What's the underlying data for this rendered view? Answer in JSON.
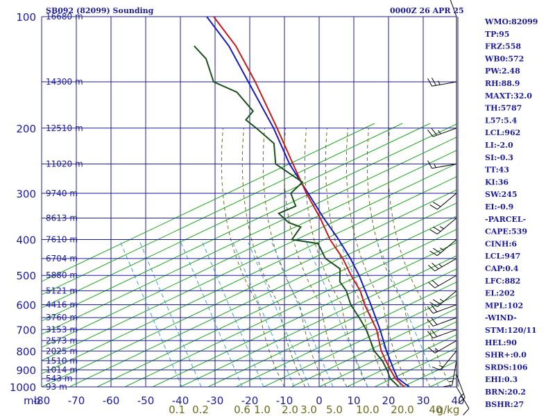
{
  "header": {
    "station": "SB092 (82099) Sounding",
    "time": "0000Z 26 APR 25"
  },
  "indices": [
    "WMO:82099",
    "TP:95",
    "FRZ:558",
    "WB0:572",
    "PW:2.48",
    "RH:88.9",
    "MAXT:32.0",
    "TH:5787",
    "L57:5.4",
    "LCL:962",
    "LI:-2.0",
    "SI:-0.3",
    "TT:43",
    "KI:36",
    "SW:245",
    "EI:-0.9",
    "-PARCEL-",
    "CAPE:539",
    "CINH:6",
    "LCL:947",
    "CAP:0.4",
    "LFC:882",
    "EL:202",
    "MPL:102",
    "-WIND-",
    "STM:120/11",
    "HEL:90",
    "SHR+:0.0",
    "SRDS:106",
    "EHI:0.3",
    "BRN:20.2",
    "BSHR:27"
  ],
  "colors": {
    "grid": "#1a1a9c",
    "dry_adiabat": "#1aa51a",
    "moist_adiabat": "#6b6b20",
    "mixing_ratio": "#3aa0d8",
    "temperature": "#c81818",
    "dewpoint": "#185018",
    "parcel": "#1818c0",
    "mixing_label": "#6b6b20"
  },
  "chart_data": {
    "type": "line",
    "diagram": "skew-t",
    "title": "SB092 (82099) Sounding",
    "ylabel": "mb",
    "pressure_ticks": [
      100,
      200,
      300,
      400,
      500,
      600,
      700,
      800,
      900,
      1000
    ],
    "temperature_ticks": [
      -80,
      -70,
      -60,
      -50,
      -40,
      -30,
      -20,
      -10,
      0,
      10,
      20,
      30,
      40
    ],
    "temperature_tick_labels": [
      "-80",
      "-70",
      "-60",
      "-50",
      "-40",
      "-30",
      "-20",
      "-10",
      "0",
      "10",
      "20",
      "30",
      "40"
    ],
    "xlim": [
      -80,
      40
    ],
    "ylim": [
      100,
      1000
    ],
    "heights": [
      {
        "label": "16680 m",
        "p": 100
      },
      {
        "label": "14300 m",
        "p": 150
      },
      {
        "label": "12510 m",
        "p": 200
      },
      {
        "label": "11020 m",
        "p": 250
      },
      {
        "label": "9740 m",
        "p": 300
      },
      {
        "label": "8613 m",
        "p": 350
      },
      {
        "label": "7610 m",
        "p": 400
      },
      {
        "label": "6704 m",
        "p": 450
      },
      {
        "label": "5880 m",
        "p": 500
      },
      {
        "label": "5121 m",
        "p": 550
      },
      {
        "label": "4416 m",
        "p": 600
      },
      {
        "label": "3760 m",
        "p": 650
      },
      {
        "label": "3153 m",
        "p": 700
      },
      {
        "label": "2573 m",
        "p": 750
      },
      {
        "label": "2025 m",
        "p": 800
      },
      {
        "label": "1510 m",
        "p": 850
      },
      {
        "label": "1014 m",
        "p": 900
      },
      {
        "label": "543 m",
        "p": 950
      },
      {
        "label": "93 m",
        "p": 1000
      }
    ],
    "mixing_ratio_labels": [
      "0.1",
      "0.2",
      "0.6",
      "1.0",
      "2.0",
      "3.0",
      "5.0",
      "10.0",
      "20.0",
      "40",
      "g/kg"
    ],
    "mixing_ratio_values": [
      0.1,
      0.2,
      0.6,
      1.0,
      2.0,
      3.0,
      5.0,
      10.0,
      20.0,
      40
    ],
    "series": [
      {
        "key": "temperature",
        "points": [
          [
            1005,
            24.0
          ],
          [
            1000,
            24.5
          ],
          [
            950,
            21.0
          ],
          [
            900,
            18.5
          ],
          [
            850,
            16.0
          ],
          [
            800,
            13.5
          ],
          [
            700,
            9.5
          ],
          [
            600,
            3.0
          ],
          [
            550,
            0.0
          ],
          [
            500,
            -4.5
          ],
          [
            450,
            -9.0
          ],
          [
            400,
            -15.0
          ],
          [
            350,
            -20.5
          ],
          [
            300,
            -27.5
          ],
          [
            250,
            -35.0
          ],
          [
            200,
            -44.0
          ],
          [
            150,
            -56.0
          ],
          [
            120,
            -66.0
          ],
          [
            100,
            -76.0
          ]
        ]
      },
      {
        "key": "dewpoint",
        "points": [
          [
            1005,
            21.5
          ],
          [
            1000,
            23.0
          ],
          [
            950,
            19.5
          ],
          [
            900,
            17.5
          ],
          [
            850,
            15.0
          ],
          [
            800,
            11.5
          ],
          [
            700,
            6.5
          ],
          [
            650,
            3.0
          ],
          [
            600,
            -1.0
          ],
          [
            550,
            -4.0
          ],
          [
            520,
            -7.0
          ],
          [
            480,
            -8.5
          ],
          [
            450,
            -14.0
          ],
          [
            410,
            -18.0
          ],
          [
            400,
            -26.0
          ],
          [
            370,
            -25.0
          ],
          [
            360,
            -29.0
          ],
          [
            340,
            -33.0
          ],
          [
            325,
            -29.0
          ],
          [
            300,
            -32.0
          ],
          [
            280,
            -30.0
          ],
          [
            250,
            -40.0
          ],
          [
            220,
            -43.0
          ],
          [
            200,
            -50.0
          ],
          [
            190,
            -54.0
          ],
          [
            180,
            -53.0
          ],
          [
            160,
            -60.0
          ],
          [
            150,
            -68.0
          ],
          [
            130,
            -73.0
          ],
          [
            120,
            -78.0
          ]
        ]
      },
      {
        "key": "parcel",
        "points": [
          [
            1000,
            26.0
          ],
          [
            947,
            21.5
          ],
          [
            900,
            19.5
          ],
          [
            800,
            15.0
          ],
          [
            700,
            10.5
          ],
          [
            600,
            4.8
          ],
          [
            500,
            -2.2
          ],
          [
            450,
            -6.8
          ],
          [
            400,
            -12.5
          ],
          [
            350,
            -19.5
          ],
          [
            300,
            -27.0
          ],
          [
            250,
            -36.0
          ],
          [
            200,
            -45.0
          ],
          [
            150,
            -58.0
          ],
          [
            120,
            -68.0
          ],
          [
            100,
            -78.0
          ]
        ]
      }
    ],
    "wind_barbs": [
      {
        "p": 1000,
        "dir": 150,
        "spd": 10
      },
      {
        "p": 925,
        "dir": 160,
        "spd": 15
      },
      {
        "p": 850,
        "dir": 190,
        "spd": 15
      },
      {
        "p": 800,
        "dir": 220,
        "spd": 15
      },
      {
        "p": 750,
        "dir": 240,
        "spd": 15
      },
      {
        "p": 700,
        "dir": 250,
        "spd": 20
      },
      {
        "p": 650,
        "dir": 250,
        "spd": 20
      },
      {
        "p": 600,
        "dir": 250,
        "spd": 20
      },
      {
        "p": 550,
        "dir": 230,
        "spd": 25
      },
      {
        "p": 500,
        "dir": 240,
        "spd": 20
      },
      {
        "p": 450,
        "dir": 240,
        "spd": 25
      },
      {
        "p": 400,
        "dir": 230,
        "spd": 25
      },
      {
        "p": 350,
        "dir": 230,
        "spd": 25
      },
      {
        "p": 300,
        "dir": 230,
        "spd": 20
      },
      {
        "p": 250,
        "dir": 260,
        "spd": 15
      },
      {
        "p": 200,
        "dir": 250,
        "spd": 25
      },
      {
        "p": 150,
        "dir": 260,
        "spd": 25
      },
      {
        "p": 100,
        "dir": 340,
        "spd": 10
      }
    ]
  }
}
